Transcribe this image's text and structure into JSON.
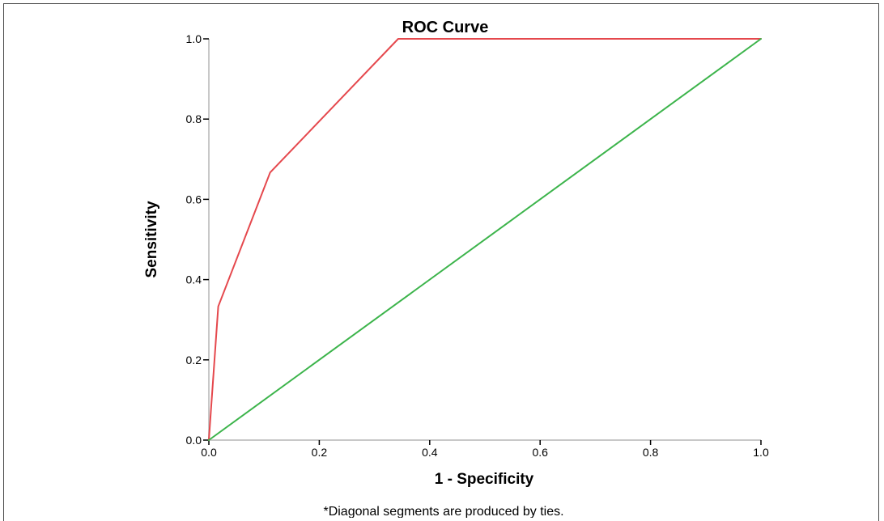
{
  "chart_data": {
    "type": "line",
    "title": "ROC Curve",
    "xlabel": "1 - Specificity",
    "ylabel": "Sensitivity",
    "xlim": [
      0.0,
      1.0
    ],
    "ylim": [
      0.0,
      1.0
    ],
    "xticks": [
      "0.0",
      "0.2",
      "0.4",
      "0.6",
      "0.8",
      "1.0"
    ],
    "yticks": [
      "0.0",
      "0.2",
      "0.4",
      "0.6",
      "0.8",
      "1.0"
    ],
    "grid": false,
    "series": [
      {
        "color": "#e5484d",
        "x": [
          0.0,
          0.017,
          0.111,
          0.343,
          1.0
        ],
        "y": [
          0.0,
          0.333,
          0.667,
          1.0,
          1.0
        ]
      },
      {
        "color": "#3cb44b",
        "x": [
          0.0,
          1.0
        ],
        "y": [
          0.0,
          1.0
        ]
      }
    ],
    "footnote": "*Diagonal segments are produced by ties."
  }
}
